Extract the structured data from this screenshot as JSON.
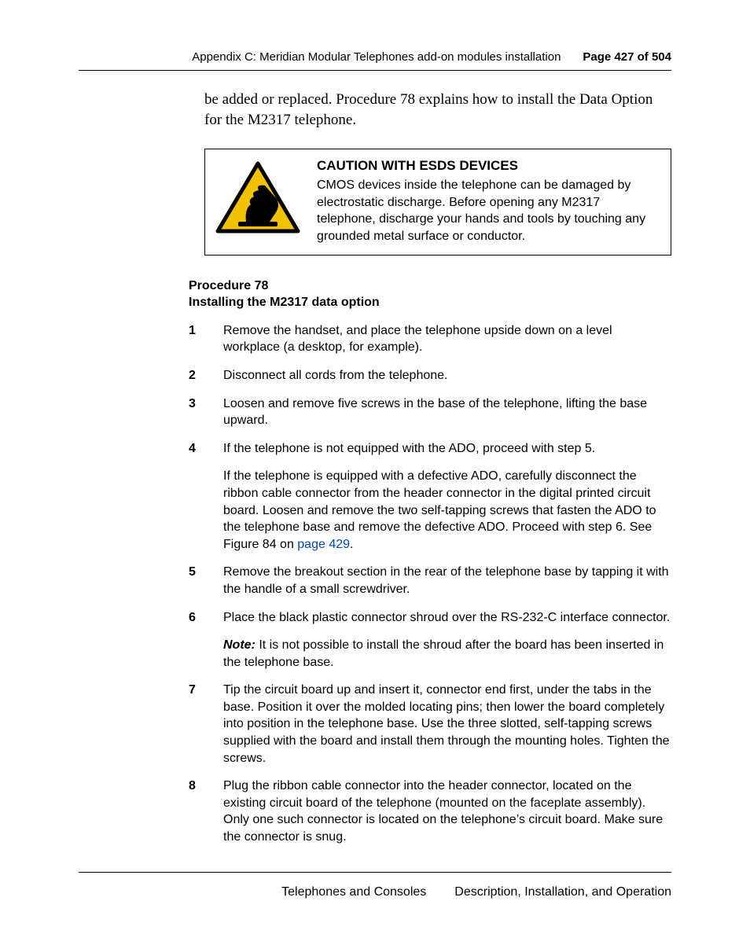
{
  "header": {
    "section": "Appendix C: Meridian Modular Telephones add-on modules installation",
    "page_label": "Page 427 of 504"
  },
  "intro": "be added or replaced. Procedure 78 explains how to install the Data Option for the M2317 telephone.",
  "caution": {
    "title": "CAUTION WITH ESDS DEVICES",
    "body": "CMOS devices inside the telephone can be damaged by electrostatic discharge. Before opening any M2317 telephone, discharge your hands and tools by touching any grounded metal surface or conductor.",
    "icon_colors": {
      "triangle": "#f2c200",
      "border": "#000000",
      "hand": "#000000"
    }
  },
  "procedure": {
    "number_line": "Procedure 78",
    "title_line": "Installing the M2317 data option"
  },
  "link_color": "#0046b8",
  "steps": [
    {
      "n": "1",
      "paras": [
        {
          "text": "Remove the handset, and place the telephone upside down on a level workplace (a desktop, for example)."
        }
      ]
    },
    {
      "n": "2",
      "paras": [
        {
          "text": "Disconnect all cords from the telephone."
        }
      ]
    },
    {
      "n": "3",
      "paras": [
        {
          "text": "Loosen and remove five screws in the base of the telephone, lifting the base upward."
        }
      ]
    },
    {
      "n": "4",
      "paras": [
        {
          "text": "If the telephone is not equipped with the ADO, proceed with step 5."
        },
        {
          "text_before_link": "If the telephone is equipped with a defective ADO, carefully disconnect the ribbon cable connector from the header connector in the digital printed circuit board. Loosen and remove the two self-tapping screws that fasten the ADO to the telephone base and remove the defective ADO. Proceed with step 6. See Figure 84 on ",
          "link_text": "page 429",
          "text_after_link": "."
        }
      ]
    },
    {
      "n": "5",
      "paras": [
        {
          "text": "Remove the breakout section in the rear of the telephone base by tapping it with the handle of a small screwdriver."
        }
      ]
    },
    {
      "n": "6",
      "paras": [
        {
          "text": "Place the black plastic connector shroud over the RS-232-C interface connector."
        },
        {
          "note_label": "Note:",
          "text": "  It is not possible to install the shroud after the board has been inserted in the telephone base."
        }
      ]
    },
    {
      "n": "7",
      "paras": [
        {
          "text": "Tip the circuit board up and insert it, connector end first, under the tabs in the base. Position it over the molded locating pins; then lower the board completely into position in the telephone base. Use the three slotted, self-tapping screws supplied with the board and install them through the mounting holes. Tighten the screws."
        }
      ]
    },
    {
      "n": "8",
      "paras": [
        {
          "text": "Plug the ribbon cable connector into the header connector, located on the existing circuit board of the telephone (mounted on the faceplate assembly). Only one such connector is located on the telephone’s circuit board. Make sure the connector is snug."
        }
      ]
    }
  ],
  "footer": {
    "left": "Telephones and Consoles",
    "right": "Description, Installation, and Operation"
  }
}
